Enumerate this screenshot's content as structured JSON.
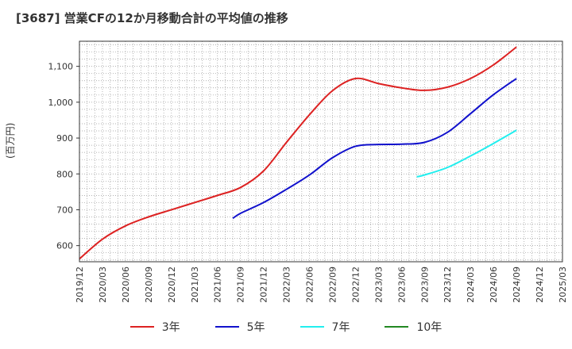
{
  "chart_data": {
    "type": "line",
    "title": "[3687]  営業CFの12か月移動合計の平均値の推移",
    "ylabel": "(百万円)",
    "ylim": [
      555,
      1170
    ],
    "yticks": [
      600,
      700,
      800,
      900,
      1000,
      1100
    ],
    "ytick_labels": [
      "600",
      "700",
      "800",
      "900",
      "1,000",
      "1,100"
    ],
    "xtick_labels": [
      "2019/12",
      "2020/03",
      "2020/06",
      "2020/09",
      "2020/12",
      "2021/03",
      "2021/06",
      "2021/09",
      "2021/12",
      "2022/03",
      "2022/06",
      "2022/09",
      "2022/12",
      "2023/03",
      "2023/06",
      "2023/09",
      "2023/12",
      "2024/03",
      "2024/06",
      "2024/09",
      "2024/12",
      "2025/03"
    ],
    "grid": true,
    "legend_position": "bottom",
    "series": [
      {
        "name": "3年",
        "color": "#dd2222",
        "x": [
          "2019/12",
          "2020/03",
          "2020/06",
          "2020/09",
          "2020/12",
          "2021/03",
          "2021/06",
          "2021/09",
          "2021/12",
          "2022/03",
          "2022/06",
          "2022/09",
          "2022/12",
          "2023/03",
          "2023/06",
          "2023/09",
          "2023/12",
          "2024/03",
          "2024/06",
          "2024/09"
        ],
        "values": [
          563,
          618,
          655,
          680,
          700,
          720,
          740,
          762,
          808,
          888,
          965,
          1032,
          1066,
          1052,
          1040,
          1033,
          1042,
          1066,
          1104,
          1154
        ]
      },
      {
        "name": "5年",
        "color": "#1111cc",
        "x": [
          "2021/08",
          "2021/09",
          "2021/12",
          "2022/03",
          "2022/06",
          "2022/09",
          "2022/12",
          "2023/03",
          "2023/06",
          "2023/09",
          "2023/12",
          "2024/03",
          "2024/06",
          "2024/09"
        ],
        "values": [
          676,
          690,
          720,
          757,
          797,
          845,
          877,
          882,
          883,
          888,
          916,
          968,
          1021,
          1066
        ]
      },
      {
        "name": "7年",
        "color": "#22eeee",
        "x": [
          "2023/08",
          "2023/09",
          "2023/12",
          "2024/03",
          "2024/06",
          "2024/09"
        ],
        "values": [
          792,
          797,
          818,
          850,
          885,
          922
        ]
      },
      {
        "name": "10年",
        "color": "#228822",
        "x": [],
        "values": []
      }
    ]
  }
}
